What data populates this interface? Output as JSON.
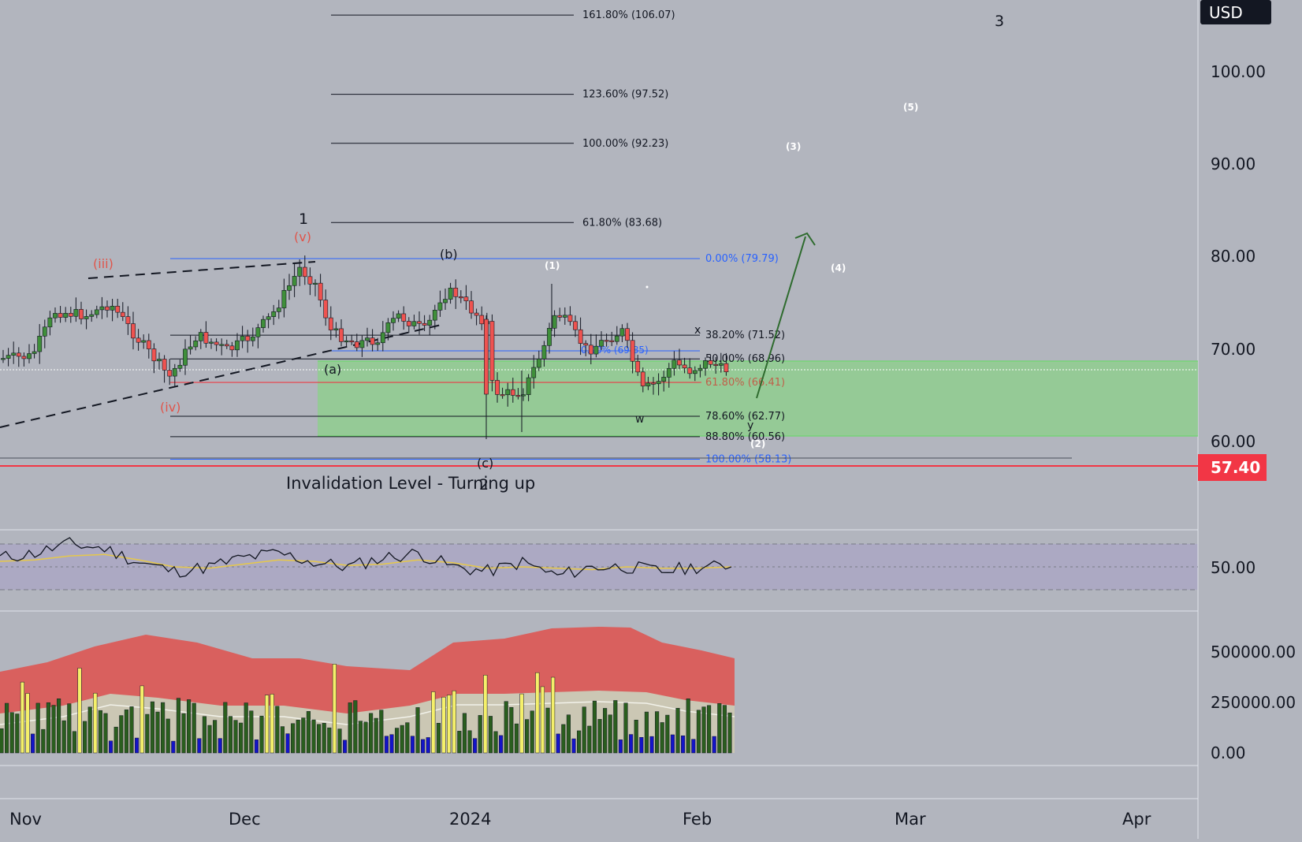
{
  "currency_label": "USD",
  "current_price": "57.40",
  "invalidation_text": "Invalidation Level - Turning up",
  "time_axis": [
    "Nov",
    "Dec",
    "2024",
    "Feb",
    "Mar",
    "Apr"
  ],
  "price_ticks": [
    "100.00",
    "90.00",
    "80.00",
    "70.00",
    "60.00"
  ],
  "rsi_tick": "50.00",
  "volume_ticks": [
    "500000.00",
    "250000.00",
    "0.00"
  ],
  "fib_extension": [
    {
      "label": "161.80% (106.07)",
      "price": 106.07
    },
    {
      "label": "123.60% (97.52)",
      "price": 97.52
    },
    {
      "label": "100.00% (92.23)",
      "price": 92.23
    },
    {
      "label": "61.80% (83.68)",
      "price": 83.68
    }
  ],
  "fib_retracement": [
    {
      "label": "0.00% (79.79)",
      "price": 79.79,
      "color": "#2962ff"
    },
    {
      "label": "38.20% (71.52)",
      "price": 71.52,
      "color": "#131722"
    },
    {
      "label": "50.00% (68.96)",
      "price": 68.96,
      "color": "#131722"
    },
    {
      "label": "61.80% (66.41)",
      "price": 66.41,
      "color": "#c0604a"
    },
    {
      "label": "78.60% (62.77)",
      "price": 62.77,
      "color": "#131722"
    },
    {
      "label": "88.80% (60.56)",
      "price": 60.56,
      "color": "#131722"
    },
    {
      "label": "100.00% (58.13)",
      "price": 58.13,
      "color": "#2962ff"
    }
  ],
  "inner_fib_label": "0.00% (69.85)",
  "wave_labels": {
    "top_3": "3",
    "wave_1": "1",
    "v": "(v)",
    "iii": "(iii)",
    "iv": "(iv)",
    "a": "(a)",
    "b": "(b)",
    "c": "(c)",
    "wave_2": "2",
    "minor_1": "(1)",
    "minor_2": "(2)",
    "minor_3": "(3)",
    "minor_4": "(4)",
    "minor_5": "(5)",
    "x": "x",
    "w": "w",
    "y": "y"
  },
  "colors": {
    "up_candle": "#26a69a",
    "bull_body": "#3f8f3a",
    "bear_body": "#ef5350",
    "target_zone": "#8fce8f",
    "price_line": "#f23645",
    "arrow": "#2e6b2e",
    "rsi_line": "#131722",
    "rsi_ma": "#e6c84a",
    "volume_band": "#d9605e",
    "volume_up": "#2a5e1e",
    "volume_spike": "#f5f06a",
    "volume_low": "#1414c8"
  },
  "chart_data": {
    "type": "candlestick",
    "title": "",
    "ylabel": "USD",
    "ylim": [
      53,
      110
    ],
    "x": [
      "Nov",
      "Dec",
      "2024",
      "Feb",
      "Mar",
      "Apr"
    ],
    "rsi": {
      "midline": 50,
      "values": [
        52,
        53,
        55,
        54,
        51,
        49,
        50,
        52,
        53,
        51,
        50,
        52,
        53,
        50,
        49,
        51,
        48,
        50,
        50,
        49,
        50,
        50
      ]
    },
    "volume_ticks": [
      500000,
      250000,
      0
    ]
  }
}
